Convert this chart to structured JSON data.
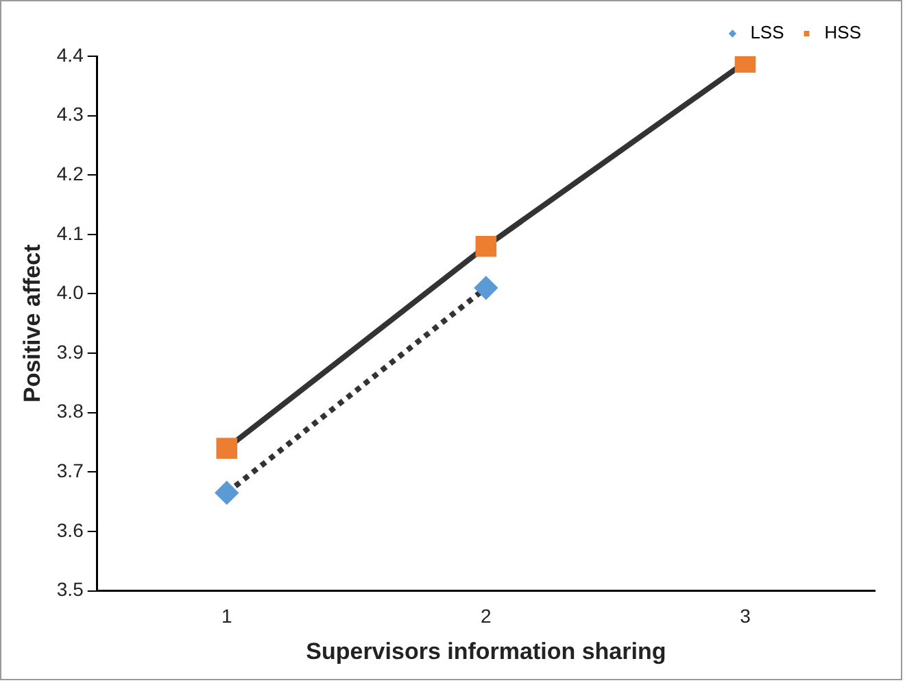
{
  "chart_data": {
    "type": "line",
    "xlabel": "Supervisors information sharing",
    "ylabel": "Positive affect",
    "categories": [
      "1",
      "2",
      "3"
    ],
    "series": [
      {
        "name": "LSS",
        "color": "#5b9bd5",
        "values": [
          3.665,
          4.01,
          null
        ],
        "marker": "diamond",
        "line_style": "dotted"
      },
      {
        "name": "HSS",
        "color": "#ed7d31",
        "values": [
          3.74,
          4.08,
          4.39
        ],
        "marker": "square",
        "line_style": "solid"
      }
    ],
    "ylim": [
      3.5,
      4.4
    ],
    "yticks": [
      {
        "value": 3.5,
        "label": "3.5"
      },
      {
        "value": 3.6,
        "label": "3.6"
      },
      {
        "value": 3.7,
        "label": "3.7"
      },
      {
        "value": 3.8,
        "label": "3.8"
      },
      {
        "value": 3.9,
        "label": "3.9"
      },
      {
        "value": 4.0,
        "label": "4.0"
      },
      {
        "value": 4.1,
        "label": "4.1"
      },
      {
        "value": 4.2,
        "label": "4.2"
      },
      {
        "value": 4.3,
        "label": "4.3"
      },
      {
        "value": 4.4,
        "label": "4.4"
      }
    ],
    "grid": false,
    "legend": "top right"
  }
}
